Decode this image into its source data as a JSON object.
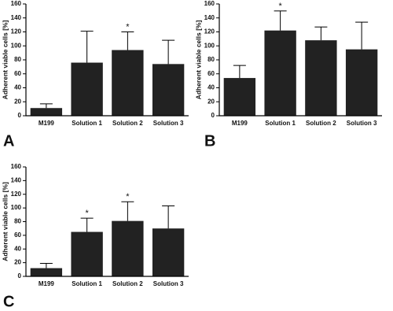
{
  "chart_data": [
    {
      "type": "bar",
      "panel": "A",
      "ylabel": "Adherent viable cells [%]",
      "categories": [
        "M199",
        "Solution 1",
        "Solution 2",
        "Solution 3"
      ],
      "values": [
        11,
        76,
        94,
        74
      ],
      "errors": [
        6,
        45,
        26,
        34
      ],
      "markers": [
        null,
        null,
        "*",
        null
      ],
      "color": "#222222",
      "ylim": [
        0,
        160
      ],
      "yticks": [
        0,
        20,
        40,
        60,
        80,
        100,
        120,
        140,
        160
      ]
    },
    {
      "type": "bar",
      "panel": "B",
      "ylabel": "Adherent viable cells [%]",
      "categories": [
        "M199",
        "Solution 1",
        "Solution 2",
        "Solution 3"
      ],
      "values": [
        54,
        122,
        108,
        95
      ],
      "errors": [
        18,
        28,
        19,
        39
      ],
      "markers": [
        null,
        "*",
        null,
        null
      ],
      "color": "#222222",
      "ylim": [
        0,
        160
      ],
      "yticks": [
        0,
        20,
        40,
        60,
        80,
        100,
        120,
        140,
        160
      ]
    },
    {
      "type": "bar",
      "panel": "C",
      "ylabel": "Adherent viable cells [%]",
      "categories": [
        "M199",
        "Solution 1",
        "Solution 2",
        "Solution 3"
      ],
      "values": [
        12,
        65,
        81,
        70
      ],
      "errors": [
        7,
        20,
        28,
        33
      ],
      "markers": [
        null,
        "*",
        "*",
        null
      ],
      "color": "#222222",
      "ylim": [
        0,
        160
      ],
      "yticks": [
        0,
        20,
        40,
        60,
        80,
        100,
        120,
        140,
        160
      ]
    }
  ]
}
